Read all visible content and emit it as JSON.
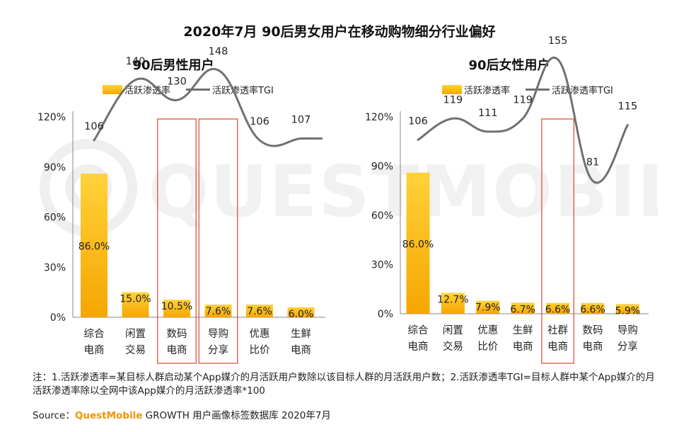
{
  "title": "2020年7月 90后男女用户在移动购物细分行业偏好",
  "watermark": "QUESTMOBILE",
  "colors": {
    "bar_top": "#ffd23a",
    "bar_bottom": "#f6a600",
    "line": "#707070",
    "highlight": "#d9472f",
    "axis": "#888888"
  },
  "legend": {
    "bar": "活跃渗透率",
    "line": "活跃渗透率TGI"
  },
  "chart_data": [
    {
      "type": "bar",
      "title": "90后男性用户",
      "categories": [
        "综合\n电商",
        "闲置\n交易",
        "数码\n电商",
        "导购\n分享",
        "优惠\n比价",
        "生鲜\n电商"
      ],
      "category_lines": [
        [
          "综合",
          "电商"
        ],
        [
          "闲置",
          "交易"
        ],
        [
          "数码",
          "电商"
        ],
        [
          "导购",
          "分享"
        ],
        [
          "优惠",
          "比价"
        ],
        [
          "生鲜",
          "电商"
        ]
      ],
      "y_ticks": [
        "0%",
        "30%",
        "60%",
        "90%",
        "120%"
      ],
      "ylim": [
        0,
        120
      ],
      "series": [
        {
          "name": "活跃渗透率",
          "type": "bar",
          "values": [
            86.0,
            15.0,
            10.5,
            7.6,
            7.6,
            6.0
          ],
          "labels": [
            "86.0%",
            "15.0%",
            "10.5%",
            "7.6%",
            "7.6%",
            "6.0%"
          ]
        },
        {
          "name": "活跃渗透率TGI",
          "type": "line",
          "values": [
            106,
            140,
            130,
            148,
            106,
            107
          ],
          "labels": [
            "106",
            "140",
            "130",
            "148",
            "106",
            "107"
          ]
        }
      ],
      "highlight_categories": [
        "数码\n电商",
        "导购\n分享"
      ],
      "legend_position": "top",
      "grid": false
    },
    {
      "type": "bar",
      "title": "90后女性用户",
      "categories": [
        "综合\n电商",
        "闲置\n交易",
        "优惠\n比价",
        "生鲜\n电商",
        "社群\n电商",
        "数码\n电商",
        "导购\n分享"
      ],
      "category_lines": [
        [
          "综合",
          "电商"
        ],
        [
          "闲置",
          "交易"
        ],
        [
          "优惠",
          "比价"
        ],
        [
          "生鲜",
          "电商"
        ],
        [
          "社群",
          "电商"
        ],
        [
          "数码",
          "电商"
        ],
        [
          "导购",
          "分享"
        ]
      ],
      "y_ticks": [
        "0%",
        "30%",
        "60%",
        "90%",
        "120%"
      ],
      "ylim": [
        0,
        120
      ],
      "series": [
        {
          "name": "活跃渗透率",
          "type": "bar",
          "values": [
            86.0,
            12.7,
            7.9,
            6.7,
            6.6,
            6.6,
            5.9
          ],
          "labels": [
            "86.0%",
            "12.7%",
            "7.9%",
            "6.7%",
            "6.6%",
            "6.6%",
            "5.9%"
          ]
        },
        {
          "name": "活跃渗透率TGI",
          "type": "line",
          "values": [
            106,
            119,
            111,
            119,
            155,
            81,
            115
          ],
          "labels": [
            "106",
            "119",
            "111",
            "119",
            "155",
            "81",
            "115"
          ]
        }
      ],
      "highlight_categories": [
        "社群\n电商"
      ],
      "legend_position": "top",
      "grid": false
    }
  ],
  "note": "注：1.活跃渗透率=某目标人群启动某个App媒介的月活跃用户数除以该目标人群的月活跃用户数；2.活跃渗透率TGI=目标人群中某个App媒介的月活跃渗透率除以全网中该App媒介的月活跃渗透率*100",
  "source": {
    "prefix": "Source：",
    "brand": "QuestMobile",
    "suffix": " GROWTH 用户画像标签数据库 2020年7月"
  }
}
